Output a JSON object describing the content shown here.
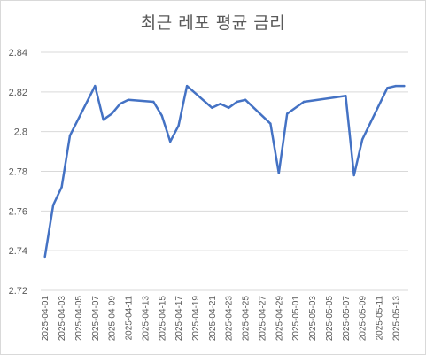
{
  "chart_data": {
    "type": "line",
    "title": "최근 레포 평균 금리",
    "xlabel": "",
    "ylabel": "",
    "ylim": [
      2.72,
      2.84
    ],
    "y_ticks": [
      "2.72",
      "2.74",
      "2.76",
      "2.78",
      "2.8",
      "2.82",
      "2.84"
    ],
    "grid": true,
    "legend": "none",
    "line_color": "#4472c4",
    "grid_color": "#d9d9d9",
    "x_tick_labels": [
      "2025-04-01",
      "2025-04-03",
      "2025-04-05",
      "2025-04-07",
      "2025-04-09",
      "2025-04-11",
      "2025-04-13",
      "2025-04-15",
      "2025-04-17",
      "2025-04-19",
      "2025-04-21",
      "2025-04-23",
      "2025-04-25",
      "2025-04-27",
      "2025-04-29",
      "2025-05-01",
      "2025-05-03",
      "2025-05-05",
      "2025-05-07",
      "2025-05-09",
      "2025-05-11",
      "2025-05-13"
    ],
    "x": [
      "2025-04-01",
      "2025-04-02",
      "2025-04-03",
      "2025-04-04",
      "2025-04-07",
      "2025-04-08",
      "2025-04-09",
      "2025-04-10",
      "2025-04-11",
      "2025-04-14",
      "2025-04-15",
      "2025-04-16",
      "2025-04-17",
      "2025-04-18",
      "2025-04-21",
      "2025-04-22",
      "2025-04-23",
      "2025-04-24",
      "2025-04-25",
      "2025-04-28",
      "2025-04-29",
      "2025-04-30",
      "2025-05-02",
      "2025-05-07",
      "2025-05-08",
      "2025-05-09",
      "2025-05-12",
      "2025-05-13",
      "2025-05-14"
    ],
    "values": [
      2.737,
      2.763,
      2.772,
      2.798,
      2.823,
      2.806,
      2.809,
      2.814,
      2.816,
      2.815,
      2.808,
      2.795,
      2.803,
      2.823,
      2.812,
      2.814,
      2.812,
      2.815,
      2.816,
      2.804,
      2.779,
      2.809,
      2.815,
      2.818,
      2.778,
      2.796,
      2.822,
      2.823,
      2.823
    ]
  }
}
